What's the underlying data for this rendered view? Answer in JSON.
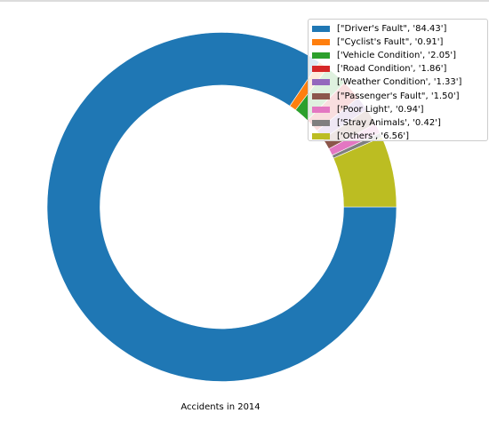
{
  "chart_data": {
    "type": "pie",
    "style": "donut",
    "title": "",
    "xlabel": "Accidents in 2014",
    "start_angle_deg": 0,
    "direction": "clockwise",
    "categories": [
      "Driver's Fault",
      "Cyclist's Fault",
      "Vehicle Condition",
      "Road Condition",
      "Weather Condition",
      "Passenger's Fault",
      "Poor Light",
      "Stray Animals",
      "Others"
    ],
    "values": [
      84.43,
      0.91,
      2.05,
      1.86,
      1.33,
      1.5,
      0.94,
      0.42,
      6.56
    ],
    "colors": [
      "#1f77b4",
      "#ff7f0e",
      "#2ca02c",
      "#d62728",
      "#9467bd",
      "#8c564b",
      "#e377c2",
      "#7f7f7f",
      "#bcbd22"
    ],
    "legend_position": "top-right",
    "legend_labels": [
      "[\"Driver's Fault\", '84.43']",
      "[\"Cyclist's Fault\", '0.91']",
      "['Vehicle Condition', '2.05']",
      "['Road Condition', '1.86']",
      "['Weather Condition', '1.33']",
      "[\"Passenger's Fault\", '1.50']",
      "['Poor Light', '0.94']",
      "['Stray Animals', '0.42']",
      "['Others', '6.56']"
    ]
  }
}
